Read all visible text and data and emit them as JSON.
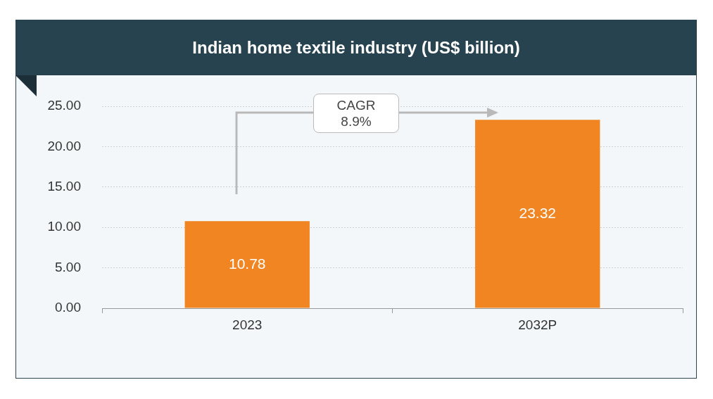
{
  "chart_data": {
    "type": "bar",
    "title": "Indian home textile industry (US$ billion)",
    "categories": [
      "2023",
      "2032P"
    ],
    "values": [
      10.78,
      23.32
    ],
    "color": "#f08522",
    "ylim": [
      0,
      25
    ],
    "yticks": [
      {
        "value": 0,
        "label": "0.00"
      },
      {
        "value": 5,
        "label": "5.00"
      },
      {
        "value": 10,
        "label": "10.00"
      },
      {
        "value": 15,
        "label": "15.00"
      },
      {
        "value": 20,
        "label": "20.00"
      },
      {
        "value": 25,
        "label": "25.00"
      }
    ],
    "grid": "y",
    "data_labels": true,
    "annotations": [
      "CAGR\n8.9%"
    ]
  }
}
